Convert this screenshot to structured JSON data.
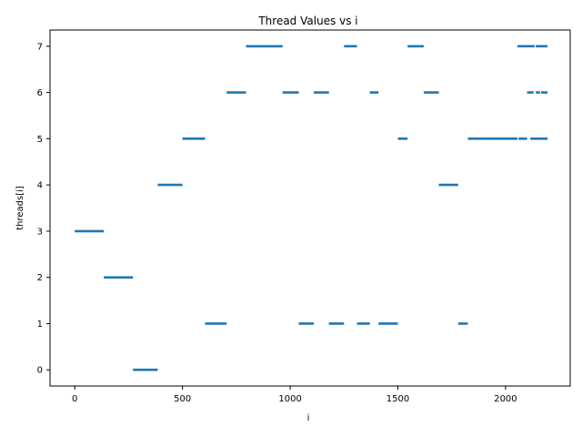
{
  "chart_data": {
    "type": "scatter",
    "title": "Thread Values vs i",
    "xlabel": "i",
    "ylabel": "threads[i]",
    "xlim": [
      -115,
      2300
    ],
    "ylim": [
      -0.35,
      7.35
    ],
    "xticks": [
      0,
      500,
      1000,
      1500,
      2000
    ],
    "yticks": [
      0,
      1,
      2,
      3,
      4,
      5,
      6,
      7
    ],
    "grid": false,
    "color": "#1f77b4",
    "segments": [
      {
        "thread": 3,
        "x": [
          0,
          135
        ]
      },
      {
        "thread": 2,
        "x": [
          135,
          270
        ]
      },
      {
        "thread": 0,
        "x": [
          270,
          385
        ]
      },
      {
        "thread": 4,
        "x": [
          385,
          500
        ]
      },
      {
        "thread": 5,
        "x": [
          500,
          605
        ]
      },
      {
        "thread": 1,
        "x": [
          605,
          705
        ]
      },
      {
        "thread": 6,
        "x": [
          705,
          795
        ]
      },
      {
        "thread": 7,
        "x": [
          795,
          965
        ]
      },
      {
        "thread": 6,
        "x": [
          965,
          1040
        ]
      },
      {
        "thread": 1,
        "x": [
          1040,
          1110
        ]
      },
      {
        "thread": 6,
        "x": [
          1110,
          1180
        ]
      },
      {
        "thread": 1,
        "x": [
          1180,
          1250
        ]
      },
      {
        "thread": 7,
        "x": [
          1250,
          1310
        ]
      },
      {
        "thread": 1,
        "x": [
          1310,
          1370
        ]
      },
      {
        "thread": 6,
        "x": [
          1370,
          1410
        ]
      },
      {
        "thread": 1,
        "x": [
          1410,
          1500
        ]
      },
      {
        "thread": 5,
        "x": [
          1500,
          1545
        ]
      },
      {
        "thread": 7,
        "x": [
          1545,
          1620
        ]
      },
      {
        "thread": 6,
        "x": [
          1620,
          1690
        ]
      },
      {
        "thread": 4,
        "x": [
          1690,
          1780
        ]
      },
      {
        "thread": 1,
        "x": [
          1780,
          1825
        ]
      },
      {
        "thread": 5,
        "x": [
          1825,
          2055
        ]
      },
      {
        "thread": 7,
        "x": [
          2055,
          2100
        ]
      },
      {
        "thread": 5,
        "x": [
          2060,
          2100
        ]
      },
      {
        "thread": 6,
        "x": [
          2100,
          2130
        ]
      },
      {
        "thread": 7,
        "x": [
          2100,
          2135
        ]
      },
      {
        "thread": 5,
        "x": [
          2115,
          2195
        ]
      },
      {
        "thread": 7,
        "x": [
          2140,
          2195
        ]
      },
      {
        "thread": 6,
        "x": [
          2140,
          2160
        ]
      },
      {
        "thread": 6,
        "x": [
          2165,
          2195
        ]
      }
    ]
  }
}
